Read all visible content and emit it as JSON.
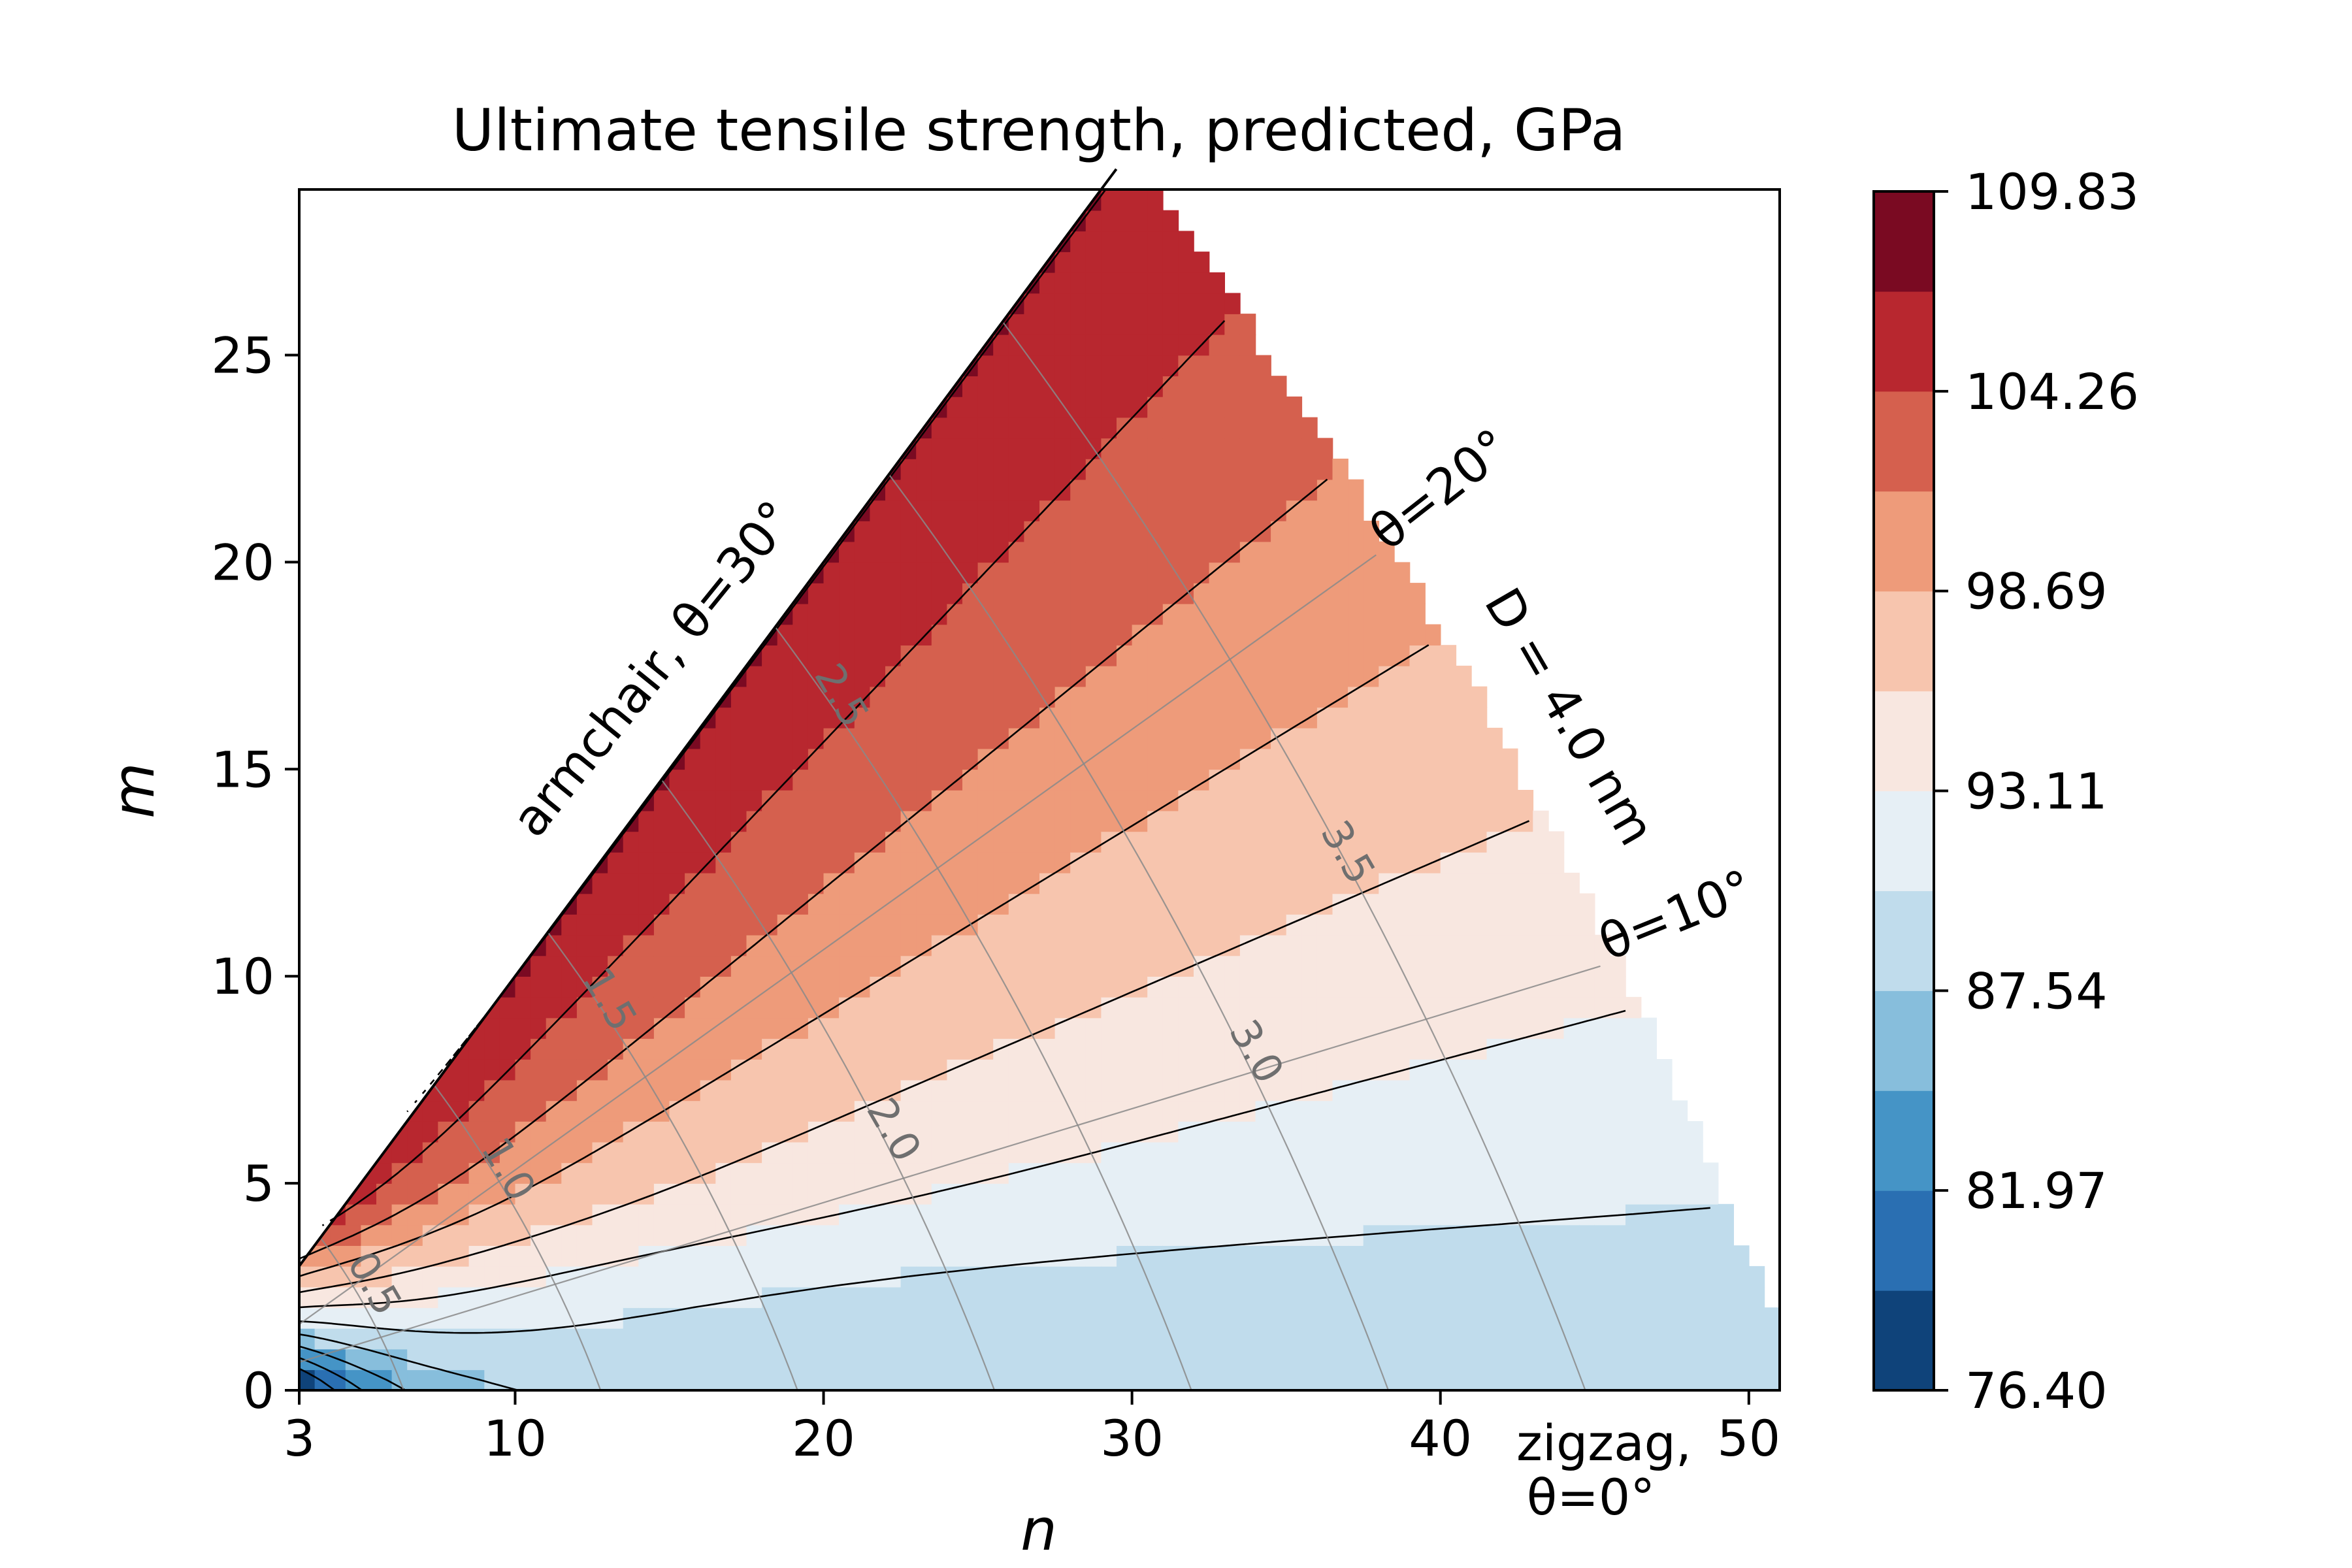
{
  "chart_data": {
    "type": "heatmap",
    "title": "Ultimate tensile strength, predicted, GPa",
    "xlabel": "n",
    "ylabel": "m",
    "xlim": [
      3,
      51
    ],
    "ylim": [
      0,
      29
    ],
    "xticks": [
      3,
      10,
      20,
      30,
      40,
      50
    ],
    "yticks": [
      0,
      5,
      10,
      15,
      20,
      25
    ],
    "colorbar": {
      "range": [
        76.4,
        109.83
      ],
      "ticks": [
        "109.83",
        "104.26",
        "98.69",
        "93.11",
        "87.54",
        "81.97",
        "76.40"
      ],
      "levels": [
        76.4,
        79.19,
        81.97,
        84.76,
        87.54,
        90.33,
        93.11,
        95.9,
        98.69,
        101.47,
        104.26,
        107.04,
        109.83
      ],
      "colors": [
        "#0f437a",
        "#2a6fb2",
        "#4594c6",
        "#87bedc",
        "#c0dcec",
        "#e6eff5",
        "#f8e7e0",
        "#f7c5ae",
        "#ee9b7a",
        "#d5604e",
        "#b8272f",
        "#7a0a22"
      ]
    },
    "annotations": {
      "armchair": "armchair, θ=30°",
      "theta20": "θ=20°",
      "theta10": "θ=10°",
      "diameter": "D = 4.0 nm",
      "zigzag_line1": "zigzag,",
      "zigzag_line2": "θ=0°"
    },
    "diameter_contour_labels": [
      "0.5",
      "1.0",
      "1.5",
      "2.0",
      "2.5",
      "3.0",
      "3.5"
    ],
    "region": {
      "description": "chiral index domain 3 ≤ n ≤ 51, 0 ≤ m ≤ n, diameter ≤ 4.0 nm",
      "strength_trend": "increases with chiral angle from ~88 GPa near zigzag to ~107 GPa near armchair; minima ~76 GPa at small n"
    }
  }
}
